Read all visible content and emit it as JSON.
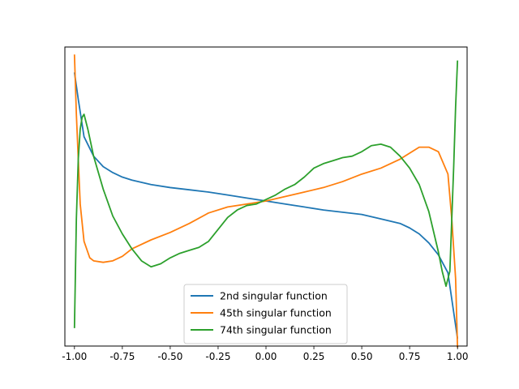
{
  "chart_data": {
    "type": "line",
    "title": "",
    "xlabel": "",
    "ylabel": "",
    "xlim": [
      -1.05,
      1.05
    ],
    "ylim": [
      -0.95,
      1.05
    ],
    "y_ticks_visible": false,
    "grid": false,
    "legend_position": "lower center",
    "x_ticks": [
      {
        "value": -1.0,
        "label": "-1.00"
      },
      {
        "value": -0.75,
        "label": "-0.75"
      },
      {
        "value": -0.5,
        "label": "-0.50"
      },
      {
        "value": -0.25,
        "label": "-0.25"
      },
      {
        "value": 0.0,
        "label": "0.00"
      },
      {
        "value": 0.25,
        "label": "0.25"
      },
      {
        "value": 0.5,
        "label": "0.50"
      },
      {
        "value": 0.75,
        "label": "0.75"
      },
      {
        "value": 1.0,
        "label": "1.00"
      }
    ],
    "series": [
      {
        "name": "2nd singular function",
        "color": "#1f77b4",
        "x": [
          -1.0,
          -0.98,
          -0.95,
          -0.9,
          -0.85,
          -0.8,
          -0.75,
          -0.7,
          -0.6,
          -0.5,
          -0.4,
          -0.3,
          -0.2,
          -0.1,
          0.0,
          0.1,
          0.2,
          0.3,
          0.4,
          0.5,
          0.6,
          0.7,
          0.75,
          0.8,
          0.85,
          0.9,
          0.95,
          1.0
        ],
        "y": [
          0.88,
          0.7,
          0.45,
          0.32,
          0.25,
          0.21,
          0.18,
          0.16,
          0.13,
          0.11,
          0.095,
          0.08,
          0.06,
          0.04,
          0.02,
          0.0,
          -0.02,
          -0.04,
          -0.055,
          -0.07,
          -0.1,
          -0.13,
          -0.16,
          -0.2,
          -0.26,
          -0.34,
          -0.46,
          -0.9
        ]
      },
      {
        "name": "45th singular function",
        "color": "#ff7f0e",
        "x": [
          -1.0,
          -0.99,
          -0.97,
          -0.95,
          -0.92,
          -0.9,
          -0.85,
          -0.8,
          -0.75,
          -0.7,
          -0.6,
          -0.5,
          -0.4,
          -0.3,
          -0.2,
          -0.1,
          0.0,
          0.1,
          0.2,
          0.3,
          0.4,
          0.5,
          0.6,
          0.7,
          0.8,
          0.85,
          0.9,
          0.95,
          0.97,
          0.99,
          1.0
        ],
        "y": [
          1.0,
          0.6,
          0.0,
          -0.25,
          -0.36,
          -0.38,
          -0.39,
          -0.38,
          -0.35,
          -0.3,
          -0.24,
          -0.19,
          -0.13,
          -0.06,
          -0.02,
          0.0,
          0.02,
          0.05,
          0.08,
          0.11,
          0.15,
          0.2,
          0.24,
          0.3,
          0.38,
          0.38,
          0.35,
          0.2,
          -0.1,
          -0.5,
          -0.96
        ]
      },
      {
        "name": "74th singular function",
        "color": "#2ca02c",
        "x": [
          -1.0,
          -0.99,
          -0.98,
          -0.97,
          -0.96,
          -0.95,
          -0.93,
          -0.9,
          -0.85,
          -0.8,
          -0.75,
          -0.7,
          -0.65,
          -0.6,
          -0.55,
          -0.5,
          -0.45,
          -0.4,
          -0.35,
          -0.3,
          -0.25,
          -0.2,
          -0.15,
          -0.1,
          -0.05,
          0.0,
          0.05,
          0.1,
          0.15,
          0.2,
          0.25,
          0.3,
          0.35,
          0.4,
          0.45,
          0.5,
          0.55,
          0.6,
          0.65,
          0.7,
          0.75,
          0.8,
          0.85,
          0.9,
          0.92,
          0.94,
          0.96,
          0.98,
          0.99,
          1.0
        ],
        "y": [
          -0.83,
          -0.1,
          0.3,
          0.5,
          0.58,
          0.6,
          0.5,
          0.32,
          0.1,
          -0.08,
          -0.2,
          -0.3,
          -0.38,
          -0.42,
          -0.4,
          -0.36,
          -0.33,
          -0.31,
          -0.29,
          -0.25,
          -0.17,
          -0.09,
          -0.04,
          -0.01,
          0.0,
          0.03,
          0.06,
          0.1,
          0.13,
          0.18,
          0.24,
          0.27,
          0.29,
          0.31,
          0.32,
          0.35,
          0.39,
          0.4,
          0.38,
          0.32,
          0.24,
          0.13,
          -0.05,
          -0.32,
          -0.45,
          -0.55,
          -0.45,
          0.25,
          0.65,
          0.96
        ]
      }
    ]
  }
}
